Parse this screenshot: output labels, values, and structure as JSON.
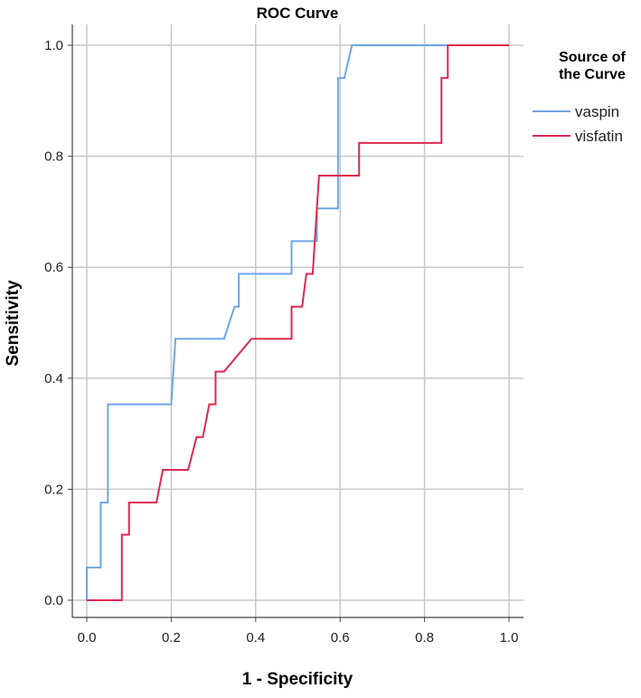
{
  "chart_data": {
    "type": "line",
    "title": "ROC Curve",
    "xlabel": "1 - Specificity",
    "ylabel": "Sensitivity",
    "xlim": [
      0,
      1
    ],
    "ylim": [
      0,
      1
    ],
    "xticks": [
      0.0,
      0.2,
      0.4,
      0.6,
      0.8,
      1.0
    ],
    "yticks": [
      0.0,
      0.2,
      0.4,
      0.6,
      0.8,
      1.0
    ],
    "xtick_labels": [
      "0.0",
      "0.2",
      "0.4",
      "0.6",
      "0.8",
      "1.0"
    ],
    "ytick_labels": [
      "0.0",
      "0.2",
      "0.4",
      "0.6",
      "0.8",
      "1.0"
    ],
    "grid": true,
    "legend": {
      "title": "Source of the Curve",
      "placement": "right"
    },
    "series": [
      {
        "name": "vaspin",
        "color": "#6ea6e6",
        "points": [
          [
            0.0,
            0.0
          ],
          [
            0.0,
            0.059
          ],
          [
            0.033,
            0.059
          ],
          [
            0.033,
            0.176
          ],
          [
            0.05,
            0.176
          ],
          [
            0.05,
            0.353
          ],
          [
            0.2,
            0.353
          ],
          [
            0.21,
            0.471
          ],
          [
            0.325,
            0.471
          ],
          [
            0.35,
            0.529
          ],
          [
            0.36,
            0.529
          ],
          [
            0.36,
            0.588
          ],
          [
            0.485,
            0.588
          ],
          [
            0.485,
            0.647
          ],
          [
            0.545,
            0.647
          ],
          [
            0.545,
            0.706
          ],
          [
            0.595,
            0.706
          ],
          [
            0.595,
            0.941
          ],
          [
            0.61,
            0.941
          ],
          [
            0.628,
            1.0
          ],
          [
            1.0,
            1.0
          ]
        ]
      },
      {
        "name": "visfatin",
        "color": "#e0284f",
        "points": [
          [
            0.0,
            0.0
          ],
          [
            0.083,
            0.0
          ],
          [
            0.083,
            0.118
          ],
          [
            0.1,
            0.118
          ],
          [
            0.1,
            0.176
          ],
          [
            0.165,
            0.176
          ],
          [
            0.18,
            0.235
          ],
          [
            0.24,
            0.235
          ],
          [
            0.26,
            0.294
          ],
          [
            0.275,
            0.294
          ],
          [
            0.29,
            0.353
          ],
          [
            0.305,
            0.353
          ],
          [
            0.305,
            0.412
          ],
          [
            0.325,
            0.412
          ],
          [
            0.39,
            0.471
          ],
          [
            0.485,
            0.471
          ],
          [
            0.485,
            0.529
          ],
          [
            0.51,
            0.529
          ],
          [
            0.52,
            0.588
          ],
          [
            0.535,
            0.588
          ],
          [
            0.55,
            0.765
          ],
          [
            0.645,
            0.765
          ],
          [
            0.645,
            0.824
          ],
          [
            0.84,
            0.824
          ],
          [
            0.84,
            0.941
          ],
          [
            0.855,
            0.941
          ],
          [
            0.855,
            1.0
          ],
          [
            1.0,
            1.0
          ]
        ]
      }
    ]
  }
}
